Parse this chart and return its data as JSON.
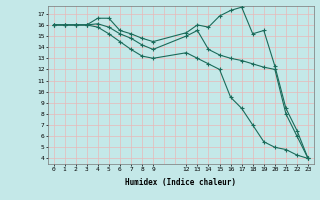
{
  "xlabel": "Humidex (Indice chaleur)",
  "background_color": "#c4e8e8",
  "grid_color": "#e8b8b8",
  "line_color": "#1a6b5a",
  "xlim": [
    -0.5,
    23.5
  ],
  "ylim": [
    3.5,
    17.7
  ],
  "xtick_positions": [
    0,
    1,
    2,
    3,
    4,
    5,
    6,
    7,
    8,
    9,
    12,
    13,
    14,
    15,
    16,
    17,
    18,
    19,
    20,
    21,
    22,
    23
  ],
  "xtick_labels": [
    "0",
    "1",
    "2",
    "3",
    "4",
    "5",
    "6",
    "7",
    "8",
    "9",
    "12",
    "13",
    "14",
    "15",
    "16",
    "17",
    "18",
    "19",
    "20",
    "21",
    "22",
    "23"
  ],
  "yticks": [
    4,
    5,
    6,
    7,
    8,
    9,
    10,
    11,
    12,
    13,
    14,
    15,
    16,
    17
  ],
  "series": [
    {
      "x": [
        0,
        1,
        2,
        3,
        4,
        5,
        6,
        7,
        8,
        9,
        12,
        13,
        14,
        15,
        16,
        17,
        18,
        19,
        20,
        21,
        22,
        23
      ],
      "y": [
        16,
        16,
        16,
        16,
        16.6,
        16.6,
        15.5,
        15.2,
        14.8,
        14.5,
        15.3,
        16.0,
        15.8,
        16.8,
        17.3,
        17.6,
        15.2,
        15.5,
        12.3,
        8.5,
        6.5,
        4.0
      ]
    },
    {
      "x": [
        0,
        1,
        2,
        3,
        4,
        5,
        6,
        7,
        8,
        9,
        12,
        13,
        14,
        15,
        16,
        17,
        18,
        19,
        20,
        21,
        22,
        23
      ],
      "y": [
        16,
        16,
        16,
        16,
        16.1,
        15.8,
        15.2,
        14.8,
        14.2,
        13.8,
        15.0,
        15.5,
        13.8,
        13.3,
        13.0,
        12.8,
        12.5,
        12.2,
        12.0,
        8.0,
        6.0,
        4.0
      ]
    },
    {
      "x": [
        0,
        1,
        2,
        3,
        4,
        5,
        6,
        7,
        8,
        9,
        12,
        13,
        14,
        15,
        16,
        17,
        18,
        19,
        20,
        21,
        22,
        23
      ],
      "y": [
        16,
        16,
        16,
        16,
        15.8,
        15.2,
        14.5,
        13.8,
        13.2,
        13.0,
        13.5,
        13.0,
        12.5,
        12.0,
        9.5,
        8.5,
        7.0,
        5.5,
        5.0,
        4.8,
        4.3,
        4.0
      ]
    }
  ]
}
